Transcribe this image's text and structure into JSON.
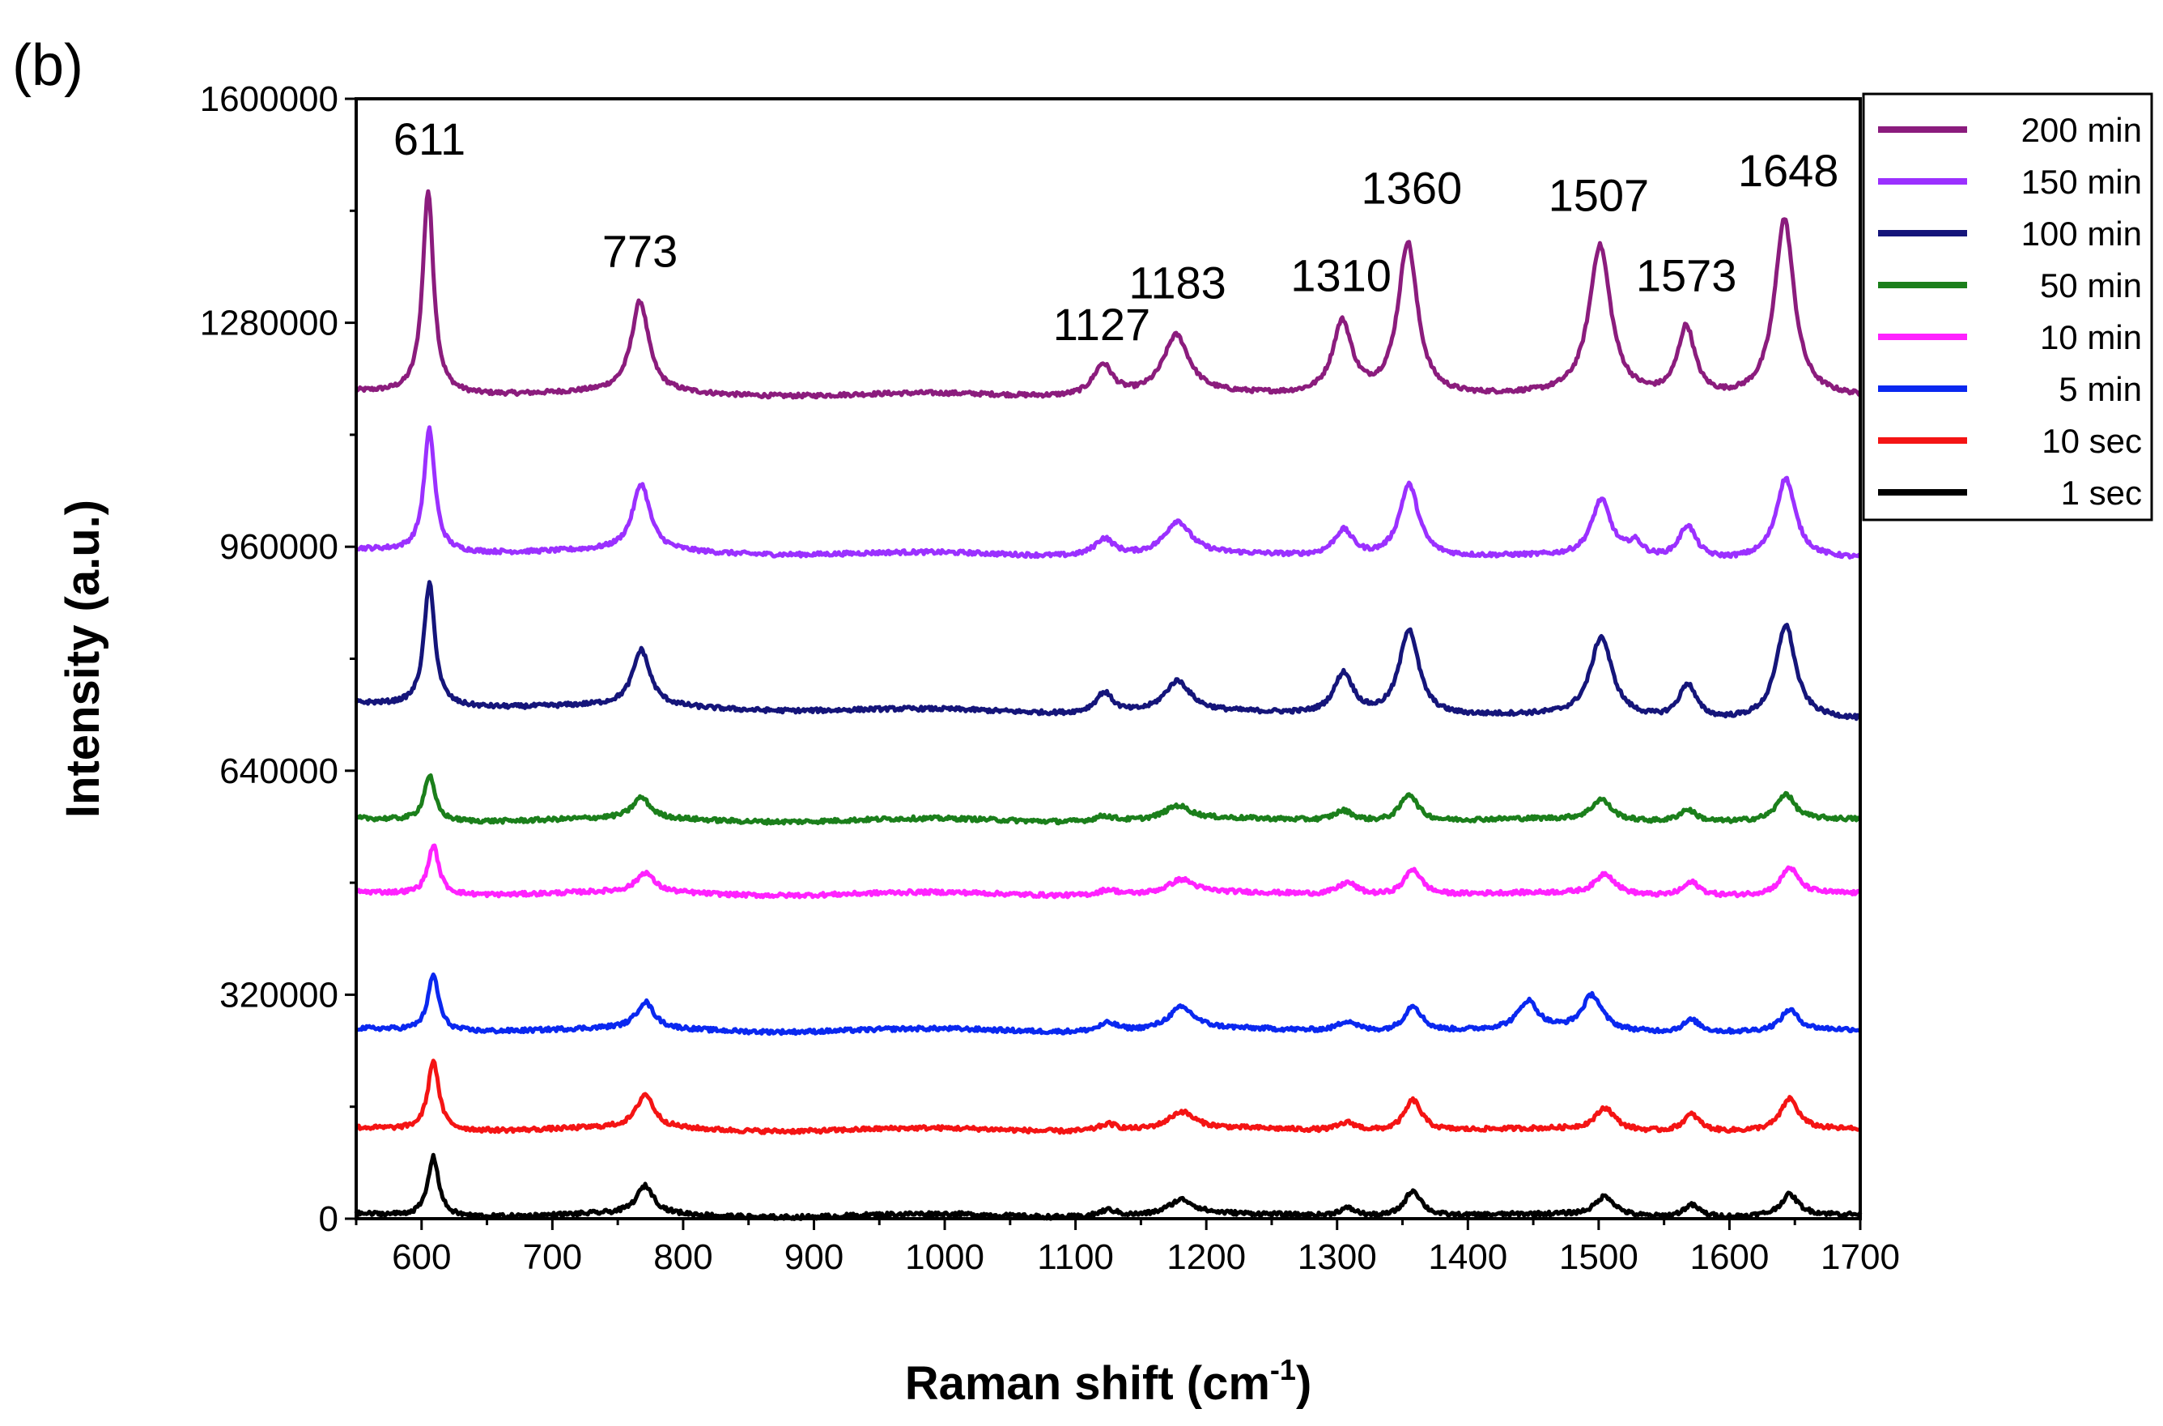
{
  "panel_label": "(b)",
  "chart_data": {
    "type": "line",
    "title": "",
    "xlabel_main": "Raman shift (cm",
    "xlabel_sup": "-1",
    "xlabel_close": ")",
    "ylabel": "Intensity (a.u.)",
    "xlim": [
      550,
      1700
    ],
    "ylim": [
      0,
      1600000
    ],
    "xticks": [
      600,
      700,
      800,
      900,
      1000,
      1100,
      1200,
      1300,
      1400,
      1500,
      1600,
      1700
    ],
    "yticks": [
      0,
      320000,
      640000,
      960000,
      1280000,
      1600000
    ],
    "legend_position": "top-right-outside",
    "peak_positions": [
      611,
      773,
      1127,
      1183,
      1310,
      1360,
      1507,
      1573,
      1648
    ],
    "peak_labels": [
      {
        "text": "611",
        "x": 606,
        "y": 1520000
      },
      {
        "text": "773",
        "x": 767,
        "y": 1360000
      },
      {
        "text": "1127",
        "x": 1120,
        "y": 1255000
      },
      {
        "text": "1183",
        "x": 1178,
        "y": 1315000
      },
      {
        "text": "1310",
        "x": 1303,
        "y": 1325000
      },
      {
        "text": "1360",
        "x": 1357,
        "y": 1450000
      },
      {
        "text": "1507",
        "x": 1500,
        "y": 1440000
      },
      {
        "text": "1573",
        "x": 1567,
        "y": 1325000
      },
      {
        "text": "1648",
        "x": 1645,
        "y": 1475000
      }
    ],
    "series": [
      {
        "name": "200 min",
        "color": "#8B1C7D",
        "shift": -6,
        "baseline": 1180000,
        "tilt": -10000,
        "peaks": [
          [
            611,
            290000,
            5
          ],
          [
            773,
            130000,
            8
          ],
          [
            1127,
            45000,
            9
          ],
          [
            1183,
            85000,
            12
          ],
          [
            1310,
            105000,
            9
          ],
          [
            1360,
            220000,
            9
          ],
          [
            1507,
            215000,
            10
          ],
          [
            1573,
            100000,
            8
          ],
          [
            1648,
            255000,
            9
          ]
        ]
      },
      {
        "name": "150 min",
        "color": "#9B30FF",
        "shift": -5,
        "baseline": 955000,
        "tilt": -15000,
        "peaks": [
          [
            611,
            175000,
            5
          ],
          [
            773,
            95000,
            8
          ],
          [
            1127,
            25000,
            9
          ],
          [
            1183,
            48000,
            12
          ],
          [
            1310,
            38000,
            9
          ],
          [
            1360,
            105000,
            9
          ],
          [
            1507,
            82000,
            9
          ],
          [
            1533,
            20000,
            7
          ],
          [
            1573,
            48000,
            8
          ],
          [
            1648,
            115000,
            9
          ]
        ]
      },
      {
        "name": "100 min",
        "color": "#15157A",
        "shift": -5,
        "baseline": 735000,
        "tilt": -25000,
        "peaks": [
          [
            611,
            175000,
            5
          ],
          [
            773,
            80000,
            8
          ],
          [
            1127,
            30000,
            8
          ],
          [
            1183,
            45000,
            12
          ],
          [
            1310,
            60000,
            9
          ],
          [
            1360,
            125000,
            9
          ],
          [
            1507,
            115000,
            10
          ],
          [
            1573,
            50000,
            8
          ],
          [
            1648,
            135000,
            9
          ]
        ]
      },
      {
        "name": "50 min",
        "color": "#1B7F1B",
        "shift": -5,
        "baseline": 570000,
        "tilt": -2000,
        "peaks": [
          [
            611,
            65000,
            5
          ],
          [
            773,
            30000,
            8
          ],
          [
            1127,
            8000,
            9
          ],
          [
            1183,
            20000,
            12
          ],
          [
            1310,
            15000,
            9
          ],
          [
            1360,
            40000,
            8
          ],
          [
            1507,
            30000,
            9
          ],
          [
            1573,
            18000,
            8
          ],
          [
            1648,
            38000,
            8
          ]
        ]
      },
      {
        "name": "10 min",
        "color": "#FF22FF",
        "shift": -2,
        "baseline": 465000,
        "tilt": -3000,
        "peaks": [
          [
            611,
            70000,
            5
          ],
          [
            773,
            28000,
            8
          ],
          [
            1127,
            8000,
            9
          ],
          [
            1183,
            20000,
            12
          ],
          [
            1310,
            18000,
            9
          ],
          [
            1360,
            38000,
            8
          ],
          [
            1507,
            30000,
            9
          ],
          [
            1573,
            20000,
            8
          ],
          [
            1648,
            38000,
            8
          ]
        ]
      },
      {
        "name": "5 min",
        "color": "#0A28F0",
        "shift": -2,
        "baseline": 270000,
        "tilt": -3000,
        "peaks": [
          [
            611,
            80000,
            5
          ],
          [
            773,
            38000,
            8
          ],
          [
            1127,
            12000,
            9
          ],
          [
            1183,
            32000,
            12
          ],
          [
            1310,
            15000,
            9
          ],
          [
            1360,
            38000,
            8
          ],
          [
            1448,
            40000,
            9
          ],
          [
            1497,
            50000,
            9
          ],
          [
            1573,
            18000,
            8
          ],
          [
            1648,
            30000,
            8
          ]
        ]
      },
      {
        "name": "10 sec",
        "color": "#F41414",
        "shift": -2,
        "baseline": 128000,
        "tilt": -3000,
        "peaks": [
          [
            611,
            100000,
            5
          ],
          [
            773,
            48000,
            8
          ],
          [
            1127,
            10000,
            9
          ],
          [
            1183,
            25000,
            12
          ],
          [
            1310,
            12000,
            9
          ],
          [
            1360,
            45000,
            8
          ],
          [
            1507,
            32000,
            9
          ],
          [
            1573,
            25000,
            8
          ],
          [
            1648,
            45000,
            8
          ]
        ]
      },
      {
        "name": "1 sec",
        "color": "#000000",
        "shift": -2,
        "baseline": 5000,
        "tilt": -2000,
        "peaks": [
          [
            611,
            85000,
            5
          ],
          [
            773,
            40000,
            8
          ],
          [
            1127,
            10000,
            9
          ],
          [
            1183,
            22000,
            12
          ],
          [
            1310,
            12000,
            9
          ],
          [
            1360,
            38000,
            8
          ],
          [
            1507,
            28000,
            9
          ],
          [
            1573,
            18000,
            8
          ],
          [
            1648,
            30000,
            8
          ]
        ]
      }
    ]
  }
}
